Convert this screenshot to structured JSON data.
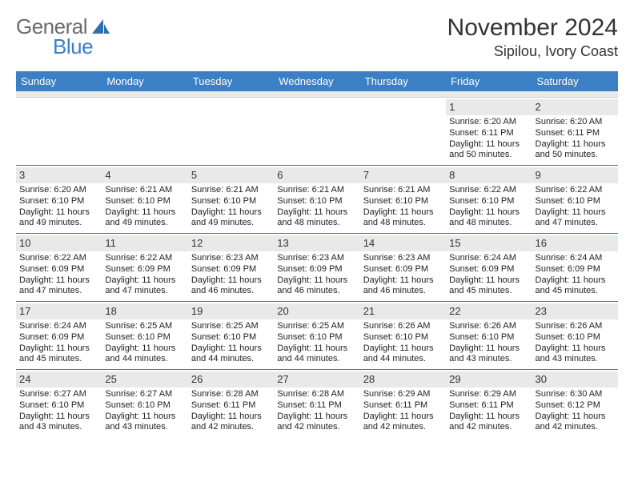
{
  "brand": {
    "word1": "General",
    "word2": "Blue"
  },
  "title": "November 2024",
  "location": "Sipilou, Ivory Coast",
  "colors": {
    "accent": "#3b7fc4",
    "header_text": "#ffffff",
    "daystrip": "#e9e9e9",
    "text": "#222222"
  },
  "dow": [
    "Sunday",
    "Monday",
    "Tuesday",
    "Wednesday",
    "Thursday",
    "Friday",
    "Saturday"
  ],
  "weeks": [
    [
      {
        "n": "",
        "sr": "",
        "ss": "",
        "dl": ""
      },
      {
        "n": "",
        "sr": "",
        "ss": "",
        "dl": ""
      },
      {
        "n": "",
        "sr": "",
        "ss": "",
        "dl": ""
      },
      {
        "n": "",
        "sr": "",
        "ss": "",
        "dl": ""
      },
      {
        "n": "",
        "sr": "",
        "ss": "",
        "dl": ""
      },
      {
        "n": "1",
        "sr": "Sunrise: 6:20 AM",
        "ss": "Sunset: 6:11 PM",
        "dl": "Daylight: 11 hours and 50 minutes."
      },
      {
        "n": "2",
        "sr": "Sunrise: 6:20 AM",
        "ss": "Sunset: 6:11 PM",
        "dl": "Daylight: 11 hours and 50 minutes."
      }
    ],
    [
      {
        "n": "3",
        "sr": "Sunrise: 6:20 AM",
        "ss": "Sunset: 6:10 PM",
        "dl": "Daylight: 11 hours and 49 minutes."
      },
      {
        "n": "4",
        "sr": "Sunrise: 6:21 AM",
        "ss": "Sunset: 6:10 PM",
        "dl": "Daylight: 11 hours and 49 minutes."
      },
      {
        "n": "5",
        "sr": "Sunrise: 6:21 AM",
        "ss": "Sunset: 6:10 PM",
        "dl": "Daylight: 11 hours and 49 minutes."
      },
      {
        "n": "6",
        "sr": "Sunrise: 6:21 AM",
        "ss": "Sunset: 6:10 PM",
        "dl": "Daylight: 11 hours and 48 minutes."
      },
      {
        "n": "7",
        "sr": "Sunrise: 6:21 AM",
        "ss": "Sunset: 6:10 PM",
        "dl": "Daylight: 11 hours and 48 minutes."
      },
      {
        "n": "8",
        "sr": "Sunrise: 6:22 AM",
        "ss": "Sunset: 6:10 PM",
        "dl": "Daylight: 11 hours and 48 minutes."
      },
      {
        "n": "9",
        "sr": "Sunrise: 6:22 AM",
        "ss": "Sunset: 6:10 PM",
        "dl": "Daylight: 11 hours and 47 minutes."
      }
    ],
    [
      {
        "n": "10",
        "sr": "Sunrise: 6:22 AM",
        "ss": "Sunset: 6:09 PM",
        "dl": "Daylight: 11 hours and 47 minutes."
      },
      {
        "n": "11",
        "sr": "Sunrise: 6:22 AM",
        "ss": "Sunset: 6:09 PM",
        "dl": "Daylight: 11 hours and 47 minutes."
      },
      {
        "n": "12",
        "sr": "Sunrise: 6:23 AM",
        "ss": "Sunset: 6:09 PM",
        "dl": "Daylight: 11 hours and 46 minutes."
      },
      {
        "n": "13",
        "sr": "Sunrise: 6:23 AM",
        "ss": "Sunset: 6:09 PM",
        "dl": "Daylight: 11 hours and 46 minutes."
      },
      {
        "n": "14",
        "sr": "Sunrise: 6:23 AM",
        "ss": "Sunset: 6:09 PM",
        "dl": "Daylight: 11 hours and 46 minutes."
      },
      {
        "n": "15",
        "sr": "Sunrise: 6:24 AM",
        "ss": "Sunset: 6:09 PM",
        "dl": "Daylight: 11 hours and 45 minutes."
      },
      {
        "n": "16",
        "sr": "Sunrise: 6:24 AM",
        "ss": "Sunset: 6:09 PM",
        "dl": "Daylight: 11 hours and 45 minutes."
      }
    ],
    [
      {
        "n": "17",
        "sr": "Sunrise: 6:24 AM",
        "ss": "Sunset: 6:09 PM",
        "dl": "Daylight: 11 hours and 45 minutes."
      },
      {
        "n": "18",
        "sr": "Sunrise: 6:25 AM",
        "ss": "Sunset: 6:10 PM",
        "dl": "Daylight: 11 hours and 44 minutes."
      },
      {
        "n": "19",
        "sr": "Sunrise: 6:25 AM",
        "ss": "Sunset: 6:10 PM",
        "dl": "Daylight: 11 hours and 44 minutes."
      },
      {
        "n": "20",
        "sr": "Sunrise: 6:25 AM",
        "ss": "Sunset: 6:10 PM",
        "dl": "Daylight: 11 hours and 44 minutes."
      },
      {
        "n": "21",
        "sr": "Sunrise: 6:26 AM",
        "ss": "Sunset: 6:10 PM",
        "dl": "Daylight: 11 hours and 44 minutes."
      },
      {
        "n": "22",
        "sr": "Sunrise: 6:26 AM",
        "ss": "Sunset: 6:10 PM",
        "dl": "Daylight: 11 hours and 43 minutes."
      },
      {
        "n": "23",
        "sr": "Sunrise: 6:26 AM",
        "ss": "Sunset: 6:10 PM",
        "dl": "Daylight: 11 hours and 43 minutes."
      }
    ],
    [
      {
        "n": "24",
        "sr": "Sunrise: 6:27 AM",
        "ss": "Sunset: 6:10 PM",
        "dl": "Daylight: 11 hours and 43 minutes."
      },
      {
        "n": "25",
        "sr": "Sunrise: 6:27 AM",
        "ss": "Sunset: 6:10 PM",
        "dl": "Daylight: 11 hours and 43 minutes."
      },
      {
        "n": "26",
        "sr": "Sunrise: 6:28 AM",
        "ss": "Sunset: 6:11 PM",
        "dl": "Daylight: 11 hours and 42 minutes."
      },
      {
        "n": "27",
        "sr": "Sunrise: 6:28 AM",
        "ss": "Sunset: 6:11 PM",
        "dl": "Daylight: 11 hours and 42 minutes."
      },
      {
        "n": "28",
        "sr": "Sunrise: 6:29 AM",
        "ss": "Sunset: 6:11 PM",
        "dl": "Daylight: 11 hours and 42 minutes."
      },
      {
        "n": "29",
        "sr": "Sunrise: 6:29 AM",
        "ss": "Sunset: 6:11 PM",
        "dl": "Daylight: 11 hours and 42 minutes."
      },
      {
        "n": "30",
        "sr": "Sunrise: 6:30 AM",
        "ss": "Sunset: 6:12 PM",
        "dl": "Daylight: 11 hours and 42 minutes."
      }
    ]
  ]
}
